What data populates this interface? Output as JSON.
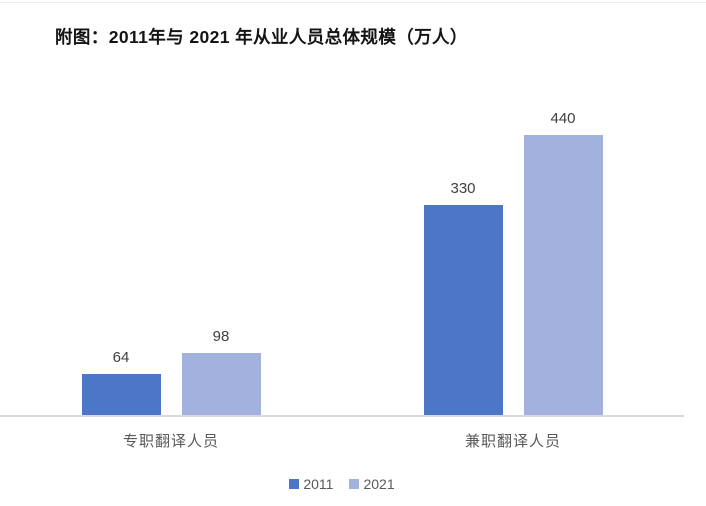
{
  "figure": {
    "title": "附图：2011年与 2021 年从业人员总体规模（万人）"
  },
  "chart_data": {
    "type": "bar",
    "title": "附图：2011年与 2021 年从业人员总体规模（万人）",
    "categories": [
      "专职翻译人员",
      "兼职翻译人员"
    ],
    "series": [
      {
        "name": "2011",
        "color": "#4C76C6",
        "values": [
          64,
          330
        ]
      },
      {
        "name": "2021",
        "color": "#A2B1DE",
        "values": [
          98,
          440
        ]
      }
    ],
    "xlabel": "",
    "ylabel": "",
    "unit": "万人",
    "ylim": [
      0,
      460
    ],
    "grid": false,
    "legend_position": "bottom",
    "data_labels_shown": true,
    "axis_line_color": "#D9D9D9",
    "data_label_color": "#404040",
    "category_label_color": "#595959",
    "legend_text_color": "#595959"
  }
}
